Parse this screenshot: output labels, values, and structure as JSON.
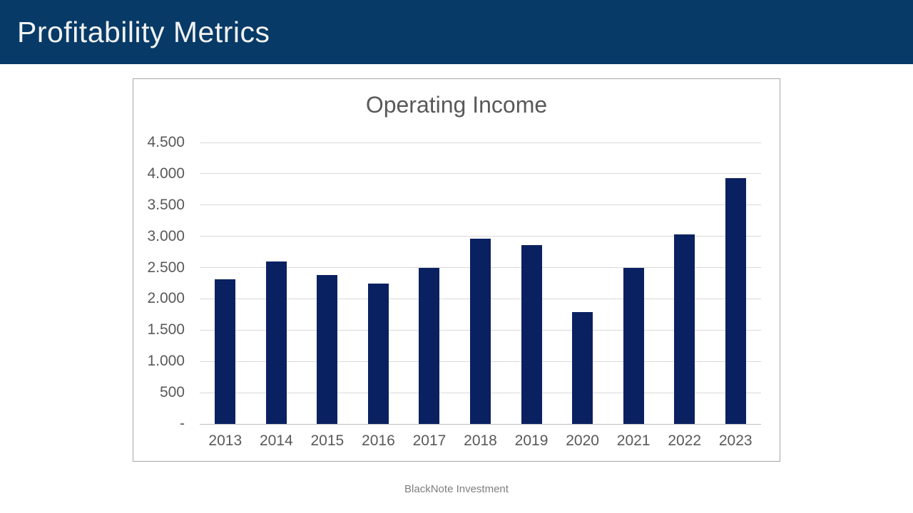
{
  "slide": {
    "header": {
      "title": "Profitability Metrics"
    },
    "footer": {
      "text": "BlackNote Investment"
    }
  },
  "colors": {
    "header_bg": "#073a67",
    "header_text": "#f2f2f2",
    "bar": "#0a2161",
    "gridline": "#d9d9d9",
    "axisline": "#bfbfbf",
    "axis_text": "#595959",
    "title_text": "#595959",
    "footer_text": "#7f7f7f",
    "chart_border": "#a6a6a6"
  },
  "chart_data": {
    "type": "bar",
    "title": "Operating Income",
    "categories": [
      "2013",
      "2014",
      "2015",
      "2016",
      "2017",
      "2018",
      "2019",
      "2020",
      "2021",
      "2022",
      "2023"
    ],
    "values": [
      2310,
      2600,
      2380,
      2240,
      2500,
      2960,
      2860,
      1790,
      2500,
      3030,
      3930
    ],
    "xlabel": "",
    "ylabel": "",
    "ylim": [
      0,
      4500
    ],
    "ytick_step": 500,
    "ytick_labels": [
      "-",
      "500",
      "1.000",
      "1.500",
      "2.000",
      "2.500",
      "3.000",
      "3.500",
      "4.000",
      "4.500"
    ],
    "grid": true,
    "legend_position": "none",
    "bar_color": "#0a2161"
  }
}
